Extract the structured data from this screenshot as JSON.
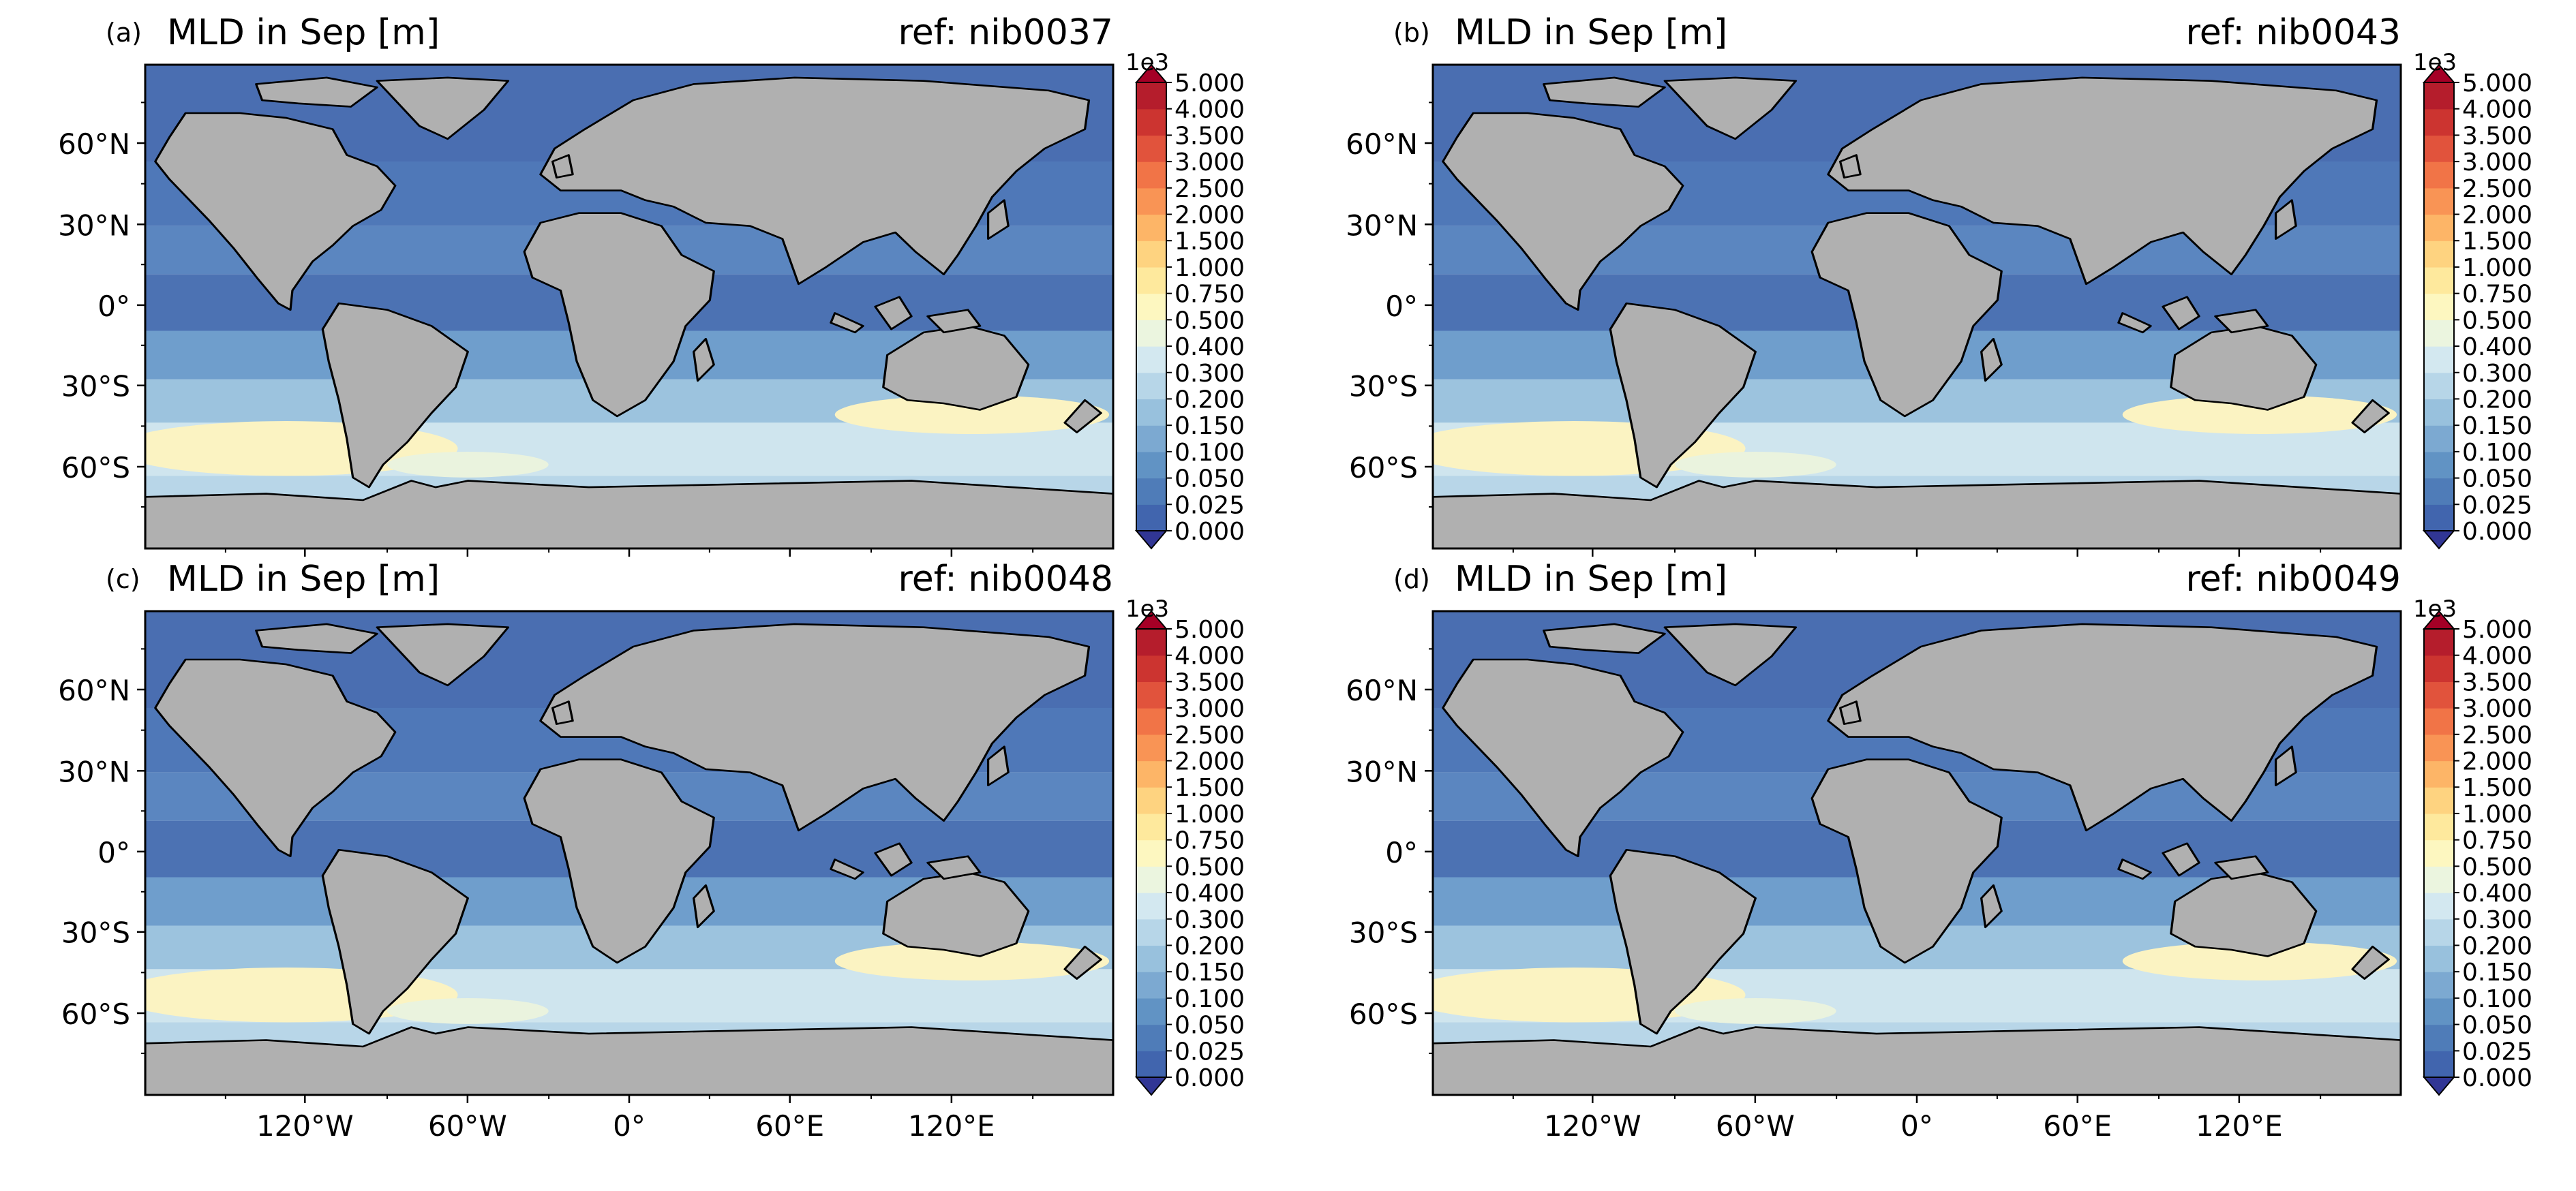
{
  "panels": [
    {
      "letter": "(a)",
      "title": "MLD in Sep [m]",
      "ref": "ref: nib0037",
      "show_xaxis": false
    },
    {
      "letter": "(b)",
      "title": "MLD in Sep [m]",
      "ref": "ref: nib0043",
      "show_xaxis": false
    },
    {
      "letter": "(c)",
      "title": "MLD in Sep [m]",
      "ref": "ref: nib0048",
      "show_xaxis": true
    },
    {
      "letter": "(d)",
      "title": "MLD in Sep [m]",
      "ref": "ref: nib0049",
      "show_xaxis": true
    }
  ],
  "lat_ticks": [
    "60°N",
    "30°N",
    "0°",
    "30°S",
    "60°S"
  ],
  "lon_ticks": [
    "120°W",
    "60°W",
    "0°",
    "60°E",
    "120°E"
  ],
  "colorbar": {
    "multiplier": "1e3",
    "labels": [
      "0.000",
      "0.025",
      "0.050",
      "0.100",
      "0.150",
      "0.200",
      "0.300",
      "0.400",
      "0.500",
      "0.750",
      "1.000",
      "1.500",
      "2.000",
      "2.500",
      "3.000",
      "3.500",
      "4.000",
      "5.000"
    ],
    "colors": [
      "#4165ae",
      "#4f7cb8",
      "#6193c4",
      "#7ca9d1",
      "#98c1dd",
      "#b7d6e8",
      "#d3e8f0",
      "#ebf5df",
      "#fdf7c0",
      "#fee99d",
      "#fed380",
      "#fdb567",
      "#f99455",
      "#f17447",
      "#e1533c",
      "#cc3430",
      "#b51d2c"
    ],
    "under_color": "#313695",
    "over_color": "#a50026"
  },
  "colors": {
    "land": "#b0b0b0",
    "ocean_deep": "#4a6eb1"
  }
}
